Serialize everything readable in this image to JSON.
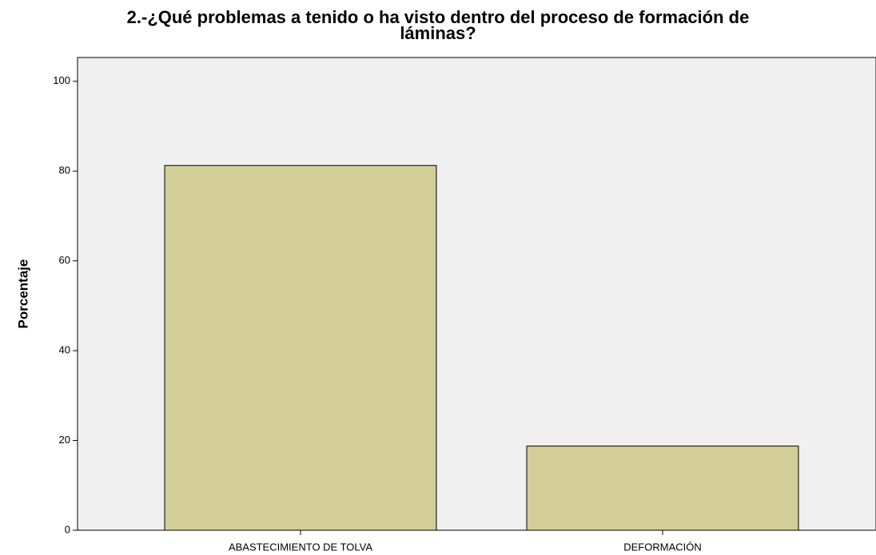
{
  "chart_data": {
    "type": "bar",
    "title": "2.-¿Qué problemas a tenido o ha visto dentro del proceso de formación de láminas?",
    "y_label": "Porcentaje",
    "categories": [
      "ABASTECIMIENTO DE TOLVA",
      "DEFORMACIÓN"
    ],
    "values": [
      81.25,
      18.75
    ],
    "color": "#d3ce97",
    "ylim": [
      0,
      105.3
    ],
    "yticks": [
      0,
      20,
      40,
      60,
      80,
      100
    ],
    "grid": false
  }
}
